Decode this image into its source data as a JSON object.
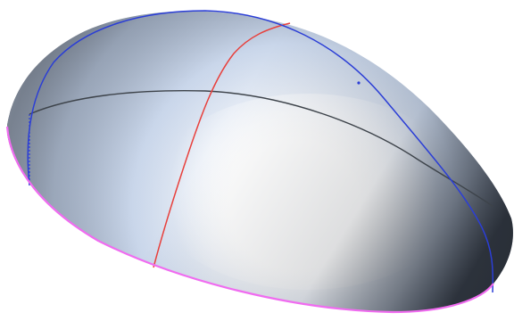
{
  "scene": {
    "object": "half-ellipsoid-dome-surface",
    "colors": {
      "background": "#ffffff",
      "surface_light": "#ffffff",
      "surface_mid": "#c9d6ea",
      "surface_shadow": "#7b8799",
      "surface_dark": "#1e232b",
      "base_edge": "#f06cf0",
      "meridian_long": "#2b3ed6",
      "meridian_cross": "#e8403c",
      "parallel": "#3d434a",
      "hidden_edge": "#2b3ed6"
    },
    "curves": [
      {
        "name": "base-edge-curve",
        "color_key": "base_edge"
      },
      {
        "name": "long-meridian-curve",
        "color_key": "meridian_long"
      },
      {
        "name": "cross-meridian-curve",
        "color_key": "meridian_cross"
      },
      {
        "name": "parallel-curve",
        "color_key": "parallel"
      },
      {
        "name": "hidden-edge-curve",
        "color_key": "hidden_edge"
      }
    ]
  }
}
